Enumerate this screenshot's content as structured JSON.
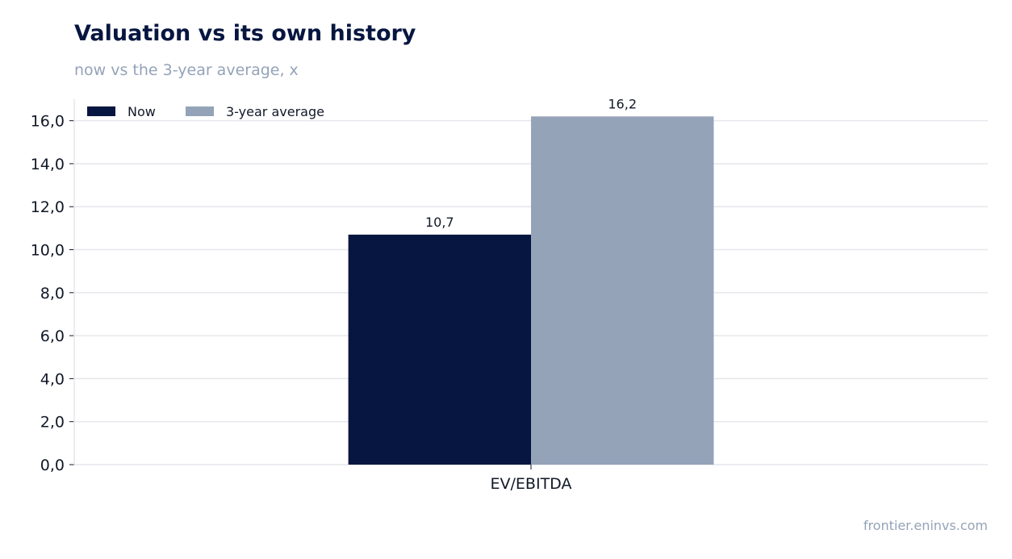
{
  "header": {
    "title": "Valuation vs its own history",
    "subtitle": "now vs the 3-year average, x"
  },
  "footer": {
    "source": "frontier.eninvs.com"
  },
  "colors": {
    "now": "#061640",
    "avg": "#94a3b8",
    "grid": "#e5e7eb",
    "axis": "#111827"
  },
  "chart_data": {
    "type": "bar",
    "categories": [
      "EV/EBITDA"
    ],
    "series": [
      {
        "name": "Now",
        "values": [
          10.7
        ],
        "labels": [
          "10,7"
        ]
      },
      {
        "name": "3-year average",
        "values": [
          16.2
        ],
        "labels": [
          "16,2"
        ]
      }
    ],
    "yticks": [
      0,
      2,
      4,
      6,
      8,
      10,
      12,
      14,
      16
    ],
    "ytick_labels": [
      "0,0",
      "2,0",
      "4,0",
      "6,0",
      "8,0",
      "10,0",
      "12,0",
      "14,0",
      "16,0"
    ],
    "ylim": [
      0,
      17
    ],
    "grid": true,
    "legend_position": "top-left"
  }
}
